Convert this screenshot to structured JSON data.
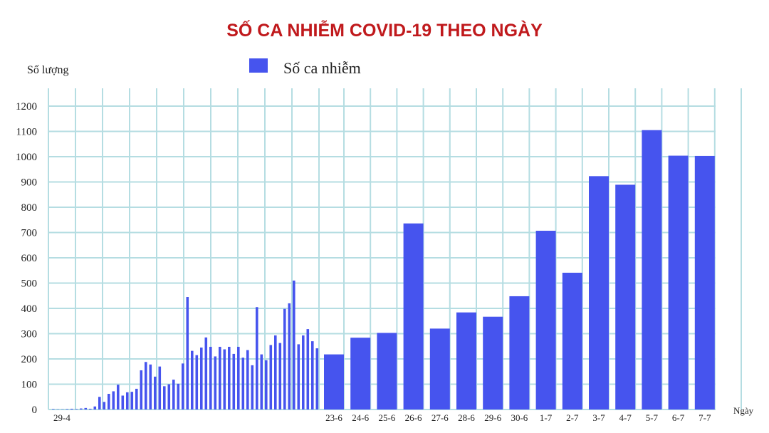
{
  "chart_data": {
    "type": "bar",
    "title": "SỐ CA NHIỄM COVID-19 THEO NGÀY",
    "ylabel": "Số lượng",
    "xlabel": "Ngày",
    "ylim": [
      0,
      1200
    ],
    "yticks": [
      0,
      100,
      200,
      300,
      400,
      500,
      600,
      700,
      800,
      900,
      1000,
      1100,
      1200
    ],
    "grid": true,
    "legend": "top-center",
    "bar_color": "#4654ee",
    "grid_color": "#b5dde2",
    "series": [
      {
        "name": "Số ca nhiễm",
        "early_period": {
          "first_label": "29-4",
          "values": [
            2,
            1,
            1,
            2,
            3,
            2,
            4,
            6,
            3,
            12,
            50,
            30,
            62,
            72,
            98,
            55,
            68,
            70,
            82,
            155,
            188,
            178,
            130,
            170,
            92,
            100,
            118,
            102,
            182,
            445,
            232,
            215,
            245,
            285,
            248,
            210,
            248,
            238,
            248,
            220,
            248,
            205,
            235,
            175,
            405,
            218,
            195,
            255,
            293,
            263,
            398,
            420,
            510,
            258,
            293,
            318,
            270,
            242
          ]
        },
        "categories": [
          "23-6",
          "24-6",
          "25-6",
          "26-6",
          "27-6",
          "28-6",
          "29-6",
          "30-6",
          "1-7",
          "2-7",
          "3-7",
          "4-7",
          "5-7",
          "6-7",
          "7-7"
        ],
        "values": [
          218,
          284,
          303,
          736,
          320,
          384,
          367,
          448,
          707,
          541,
          923,
          889,
          1105,
          1004,
          1003
        ]
      }
    ]
  }
}
